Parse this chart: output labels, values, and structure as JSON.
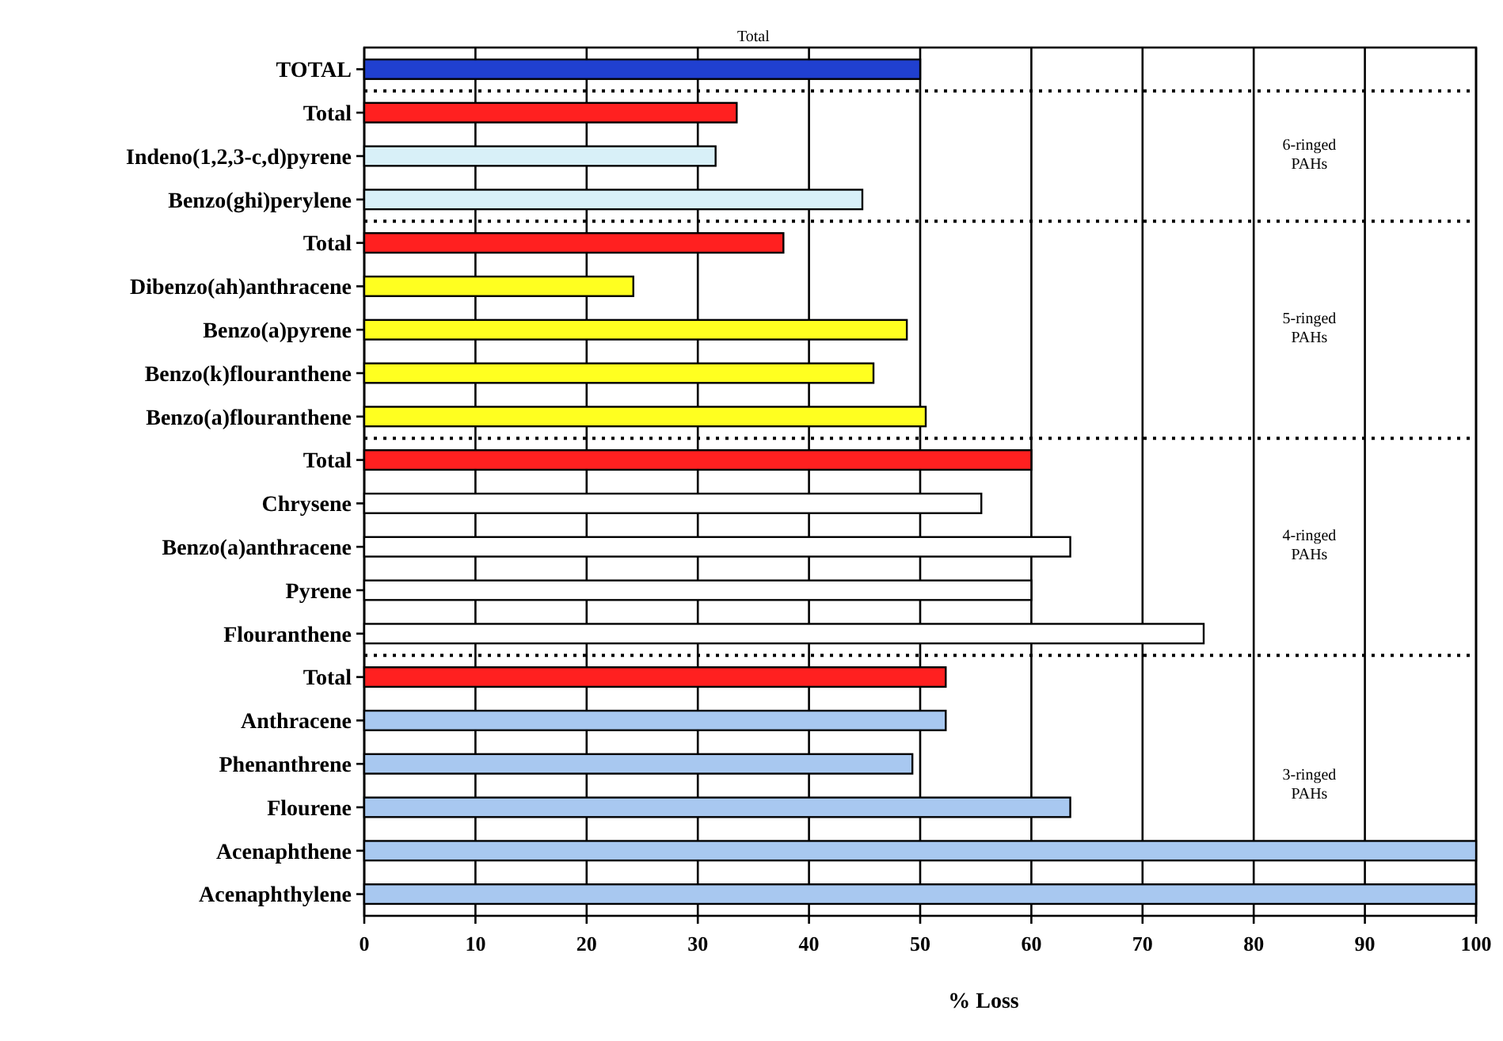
{
  "chart_data": {
    "type": "bar",
    "orientation": "horizontal",
    "xlabel": "% Loss",
    "categories": [
      "TOTAL",
      "Total",
      "Indeno(1,2,3-c,d)pyrene",
      "Benzo(ghi)perylene",
      "Total",
      "Dibenzo(ah)anthracene",
      "Benzo(a)pyrene",
      "Benzo(k)flouranthene",
      "Benzo(a)flouranthene",
      "Total",
      "Chrysene",
      "Benzo(a)anthracene",
      "Pyrene",
      "Flouranthene",
      "Total",
      "Anthracene",
      "Phenanthrene",
      "Flourene",
      "Acenaphthene",
      "Acenaphthylene"
    ],
    "values": [
      50,
      33.5,
      31.6,
      44.8,
      37.7,
      24.2,
      48.8,
      45.8,
      50.5,
      60,
      55.5,
      63.5,
      60,
      75.5,
      52.3,
      52.3,
      49.3,
      63.5,
      100,
      100
    ],
    "colors": [
      "#2040d0",
      "#ff2020",
      "#d8f0f8",
      "#d8f0f8",
      "#ff2020",
      "#ffff20",
      "#ffff20",
      "#ffff20",
      "#ffff20",
      "#ff2020",
      "#ffffff",
      "#ffffff",
      "#ffffff",
      "#ffffff",
      "#ff2020",
      "#a8c8f0",
      "#a8c8f0",
      "#a8c8f0",
      "#a8c8f0",
      "#a8c8f0"
    ],
    "xlim": [
      0,
      100
    ],
    "xticks": [
      0,
      10,
      20,
      30,
      40,
      50,
      60,
      70,
      80,
      90,
      100
    ],
    "grid": "x",
    "annotations": [
      "Total",
      "6-ringed PAHs",
      "5-ringed PAHs",
      "4-ringed PAHs",
      "3-ringed PAHs"
    ]
  }
}
